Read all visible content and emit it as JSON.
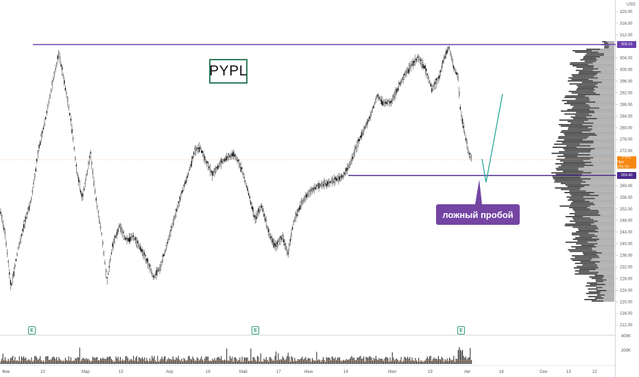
{
  "ticker": "PYPL",
  "currency": "USD",
  "annotation": "ложный пробой",
  "y_axis_ticks": [
    "320.00",
    "316.00",
    "312.00",
    "308.00",
    "304.00",
    "300.00",
    "296.00",
    "292.00",
    "288.00",
    "284.00",
    "280.00",
    "276.00",
    "272.00",
    "268.00",
    "264.00",
    "260.00",
    "256.00",
    "252.00",
    "248.00",
    "244.00",
    "240.00",
    "236.00",
    "232.00",
    "228.00",
    "224.00",
    "220.00",
    "216.00",
    "212.00"
  ],
  "x_axis_ticks": [
    {
      "label": "Фев"
    },
    {
      "label": "10"
    },
    {
      "label": "Мар"
    },
    {
      "label": "15"
    },
    {
      "label": "Апр"
    },
    {
      "label": "19"
    },
    {
      "label": "Май"
    },
    {
      "label": "17"
    },
    {
      "label": "Июн"
    },
    {
      "label": "14"
    },
    {
      "label": "Июл"
    },
    {
      "label": "19"
    },
    {
      "label": "Авг"
    },
    {
      "label": "16"
    },
    {
      "label": "Сен"
    },
    {
      "label": "13"
    },
    {
      "label": "22"
    }
  ],
  "price_tags": {
    "resistance": "309.15",
    "support": "269.40",
    "last_line1": "PYPL",
    "last_line2": "Пре",
    "last_value": "270.73"
  },
  "volume_axis": [
    "400K",
    "200K"
  ],
  "earnings_badge": "E",
  "colors": {
    "level_line": "#6a3fae",
    "candles": "#000000",
    "projection": "#26a69a",
    "annotation_bg": "#7445a3",
    "last_price": "#f58a13"
  }
}
